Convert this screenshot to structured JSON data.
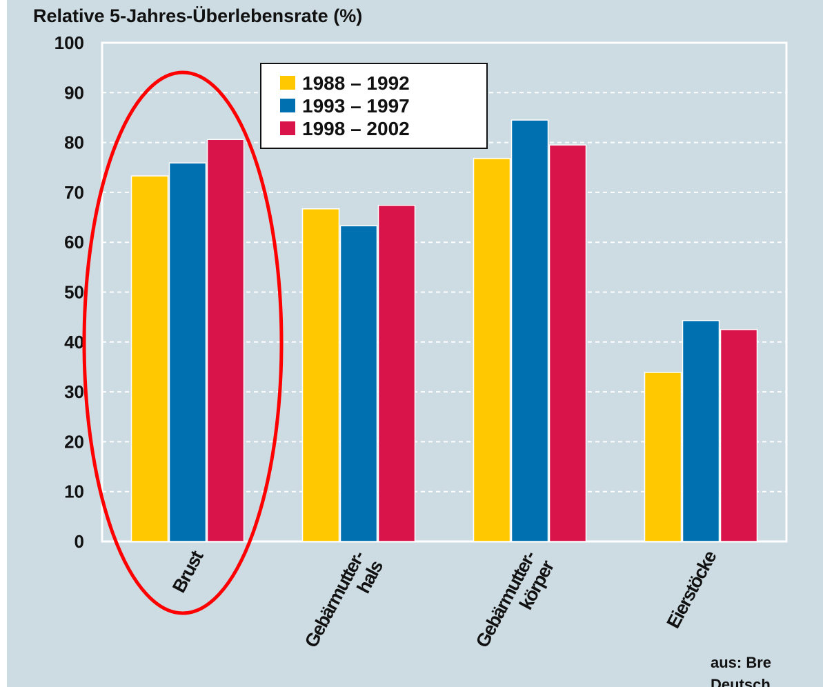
{
  "chart_data": {
    "type": "bar",
    "title": "Relative 5-Jahres-Überlebensrate (%)",
    "categories": [
      [
        "Brust"
      ],
      [
        "Gebärmutter-",
        "hals"
      ],
      [
        "Gebärmutter-",
        "körper"
      ],
      [
        "Eierstöcke"
      ]
    ],
    "series": [
      {
        "name": "1988 – 1992",
        "color": "#ffc800",
        "values": [
          73.3,
          66.7,
          76.8,
          33.9
        ]
      },
      {
        "name": "1993 – 1997",
        "color": "#0070b0",
        "values": [
          75.9,
          63.3,
          84.5,
          44.3
        ]
      },
      {
        "name": "1998 – 2002",
        "color": "#d8144a",
        "values": [
          80.6,
          67.4,
          79.5,
          42.5
        ]
      }
    ],
    "ylim": [
      0,
      100
    ],
    "yticks": [
      0,
      10,
      20,
      30,
      40,
      50,
      60,
      70,
      80,
      90,
      100
    ],
    "grid": true,
    "legend": "top",
    "source": [
      "aus: Bre",
      "Deutsch"
    ]
  }
}
